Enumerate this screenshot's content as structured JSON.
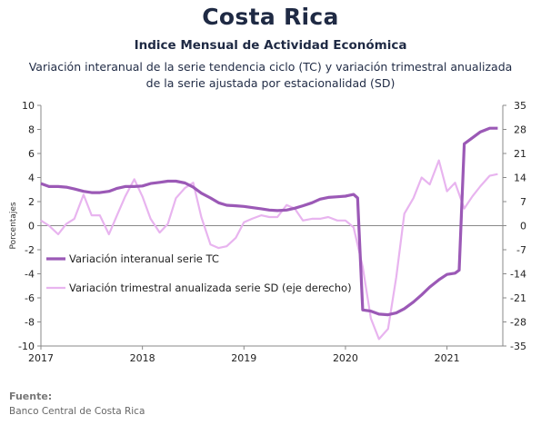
{
  "header": {
    "title": "Costa Rica",
    "subtitle": "Indice Mensual de  Actividad Económica",
    "description_line1": "Variación interanual de la serie tendencia ciclo (TC) y variación trimestral anualizada",
    "description_line2": "de la serie ajustada por estacionalidad (SD)"
  },
  "footer": {
    "source_label": "Fuente:",
    "source_text": "Banco Central de Costa Rica"
  },
  "chart_data": {
    "type": "line",
    "ylabel": "Porcentajes",
    "x_tick_labels": [
      "2017",
      "2018",
      "2019",
      "2020",
      "2021"
    ],
    "x_ticks": [
      2017,
      2018,
      2019,
      2020,
      2021
    ],
    "xlim": [
      2017.0,
      2021.55
    ],
    "left_axis": {
      "ylim": [
        -10,
        10
      ],
      "ticks": [
        -10,
        -8,
        -6,
        -4,
        -2,
        0,
        2,
        4,
        6,
        8,
        10
      ]
    },
    "right_axis": {
      "ylim": [
        -35,
        35
      ],
      "ticks": [
        -35,
        -28,
        -21,
        -14,
        -7,
        0,
        7,
        14,
        21,
        28,
        35
      ]
    },
    "grid": false,
    "legend_position": "left-center",
    "colors": {
      "tc": "#9b59b6",
      "sd": "#e8b4ef",
      "axis": "#888888"
    },
    "series": [
      {
        "name": "Variación interanual serie TC",
        "axis": "left",
        "x": [
          2017.0,
          2017.08,
          2017.17,
          2017.25,
          2017.33,
          2017.42,
          2017.5,
          2017.58,
          2017.67,
          2017.75,
          2017.83,
          2017.92,
          2018.0,
          2018.08,
          2018.17,
          2018.25,
          2018.33,
          2018.42,
          2018.5,
          2018.58,
          2018.67,
          2018.75,
          2018.83,
          2018.92,
          2019.0,
          2019.08,
          2019.17,
          2019.25,
          2019.33,
          2019.42,
          2019.5,
          2019.58,
          2019.67,
          2019.75,
          2019.83,
          2019.92,
          2020.0,
          2020.08,
          2020.12,
          2020.17,
          2020.25,
          2020.33,
          2020.42,
          2020.5,
          2020.58,
          2020.67,
          2020.75,
          2020.83,
          2020.92,
          2021.0,
          2021.08,
          2021.12,
          2021.17,
          2021.25,
          2021.33,
          2021.42,
          2021.5
        ],
        "values": [
          3.5,
          3.25,
          3.25,
          3.2,
          3.05,
          2.85,
          2.75,
          2.75,
          2.85,
          3.1,
          3.25,
          3.25,
          3.3,
          3.5,
          3.6,
          3.7,
          3.7,
          3.55,
          3.2,
          2.7,
          2.3,
          1.9,
          1.7,
          1.65,
          1.6,
          1.5,
          1.4,
          1.3,
          1.25,
          1.3,
          1.45,
          1.65,
          1.9,
          2.2,
          2.35,
          2.4,
          2.45,
          2.6,
          2.3,
          -7.0,
          -7.1,
          -7.35,
          -7.4,
          -7.25,
          -6.9,
          -6.35,
          -5.75,
          -5.1,
          -4.5,
          -4.05,
          -3.95,
          -3.7,
          6.8,
          7.3,
          7.8,
          8.1,
          8.1
        ]
      },
      {
        "name": "Variación trimestral anualizada serie SD (eje derecho)",
        "axis": "right",
        "x": [
          2017.0,
          2017.08,
          2017.17,
          2017.25,
          2017.33,
          2017.42,
          2017.5,
          2017.58,
          2017.67,
          2017.75,
          2017.83,
          2017.92,
          2018.0,
          2018.08,
          2018.17,
          2018.25,
          2018.33,
          2018.42,
          2018.5,
          2018.58,
          2018.67,
          2018.75,
          2018.83,
          2018.92,
          2019.0,
          2019.08,
          2019.17,
          2019.25,
          2019.33,
          2019.42,
          2019.5,
          2019.58,
          2019.67,
          2019.75,
          2019.83,
          2019.92,
          2020.0,
          2020.08,
          2020.17,
          2020.25,
          2020.33,
          2020.42,
          2020.5,
          2020.58,
          2020.67,
          2020.75,
          2020.83,
          2020.92,
          2021.0,
          2021.08,
          2021.17,
          2021.25,
          2021.33,
          2021.42,
          2021.5
        ],
        "values": [
          1.5,
          0.0,
          -2.5,
          0.5,
          2.0,
          9.0,
          3.0,
          3.0,
          -2.5,
          3.0,
          8.5,
          13.5,
          8.5,
          2.0,
          -2.0,
          0.5,
          8.0,
          11.0,
          12.5,
          2.5,
          -5.5,
          -6.5,
          -6.0,
          -3.5,
          1.0,
          2.0,
          3.0,
          2.5,
          2.5,
          6.0,
          5.0,
          1.5,
          2.0,
          2.0,
          2.5,
          1.5,
          1.5,
          -0.5,
          -12.0,
          -27.0,
          -33.0,
          -30.0,
          -15.0,
          3.5,
          8.0,
          14.0,
          12.0,
          19.0,
          10.0,
          12.5,
          5.0,
          8.5,
          11.5,
          14.5,
          15.0
        ]
      }
    ]
  }
}
